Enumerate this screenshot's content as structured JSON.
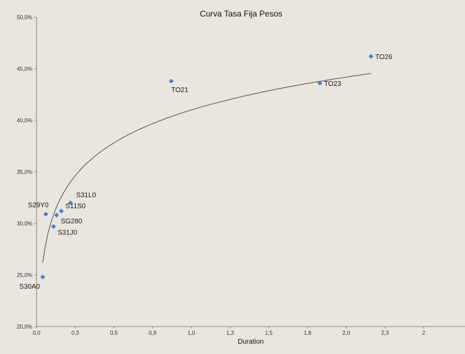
{
  "chart_data": {
    "type": "scatter",
    "title": "Curva Tasa Fija Pesos",
    "xlabel": "Duration",
    "ylabel": "",
    "xlim": [
      0.0,
      2.5
    ],
    "ylim": [
      0.2,
      0.5
    ],
    "x_ticks": [
      "0,0",
      "0,3",
      "0,5",
      "0,8",
      "1,0",
      "1,3",
      "1,5",
      "1,8",
      "2,0",
      "2,3",
      "2"
    ],
    "y_ticks": [
      "20,0%",
      "25,0%",
      "30,0%",
      "35,0%",
      "40,0%",
      "45,0%",
      "50,0%"
    ],
    "grid": false,
    "legend": "none",
    "colors": {
      "background": "#e8e6df",
      "marker": "#4f7fc0",
      "trendline": "#555555"
    },
    "series": [
      {
        "points": [
          {
            "label": "S30A0",
            "x": 0.04,
            "y": 0.248
          },
          {
            "label": "S29Y0",
            "x": 0.06,
            "y": 0.309
          },
          {
            "label": "S31J0",
            "x": 0.11,
            "y": 0.297
          },
          {
            "label": "SG280",
            "x": 0.13,
            "y": 0.308
          },
          {
            "label": "S11S0",
            "x": 0.16,
            "y": 0.312
          },
          {
            "label": "S31L0",
            "x": 0.22,
            "y": 0.32
          },
          {
            "label": "TO21",
            "x": 0.87,
            "y": 0.438
          },
          {
            "label": "TO23",
            "x": 1.83,
            "y": 0.436
          },
          {
            "label": "TO26",
            "x": 2.16,
            "y": 0.462
          }
        ]
      }
    ],
    "trendline": {
      "type": "logarithmic",
      "a": 0.41,
      "b": 0.046,
      "x_range": [
        0.04,
        2.16
      ]
    }
  }
}
